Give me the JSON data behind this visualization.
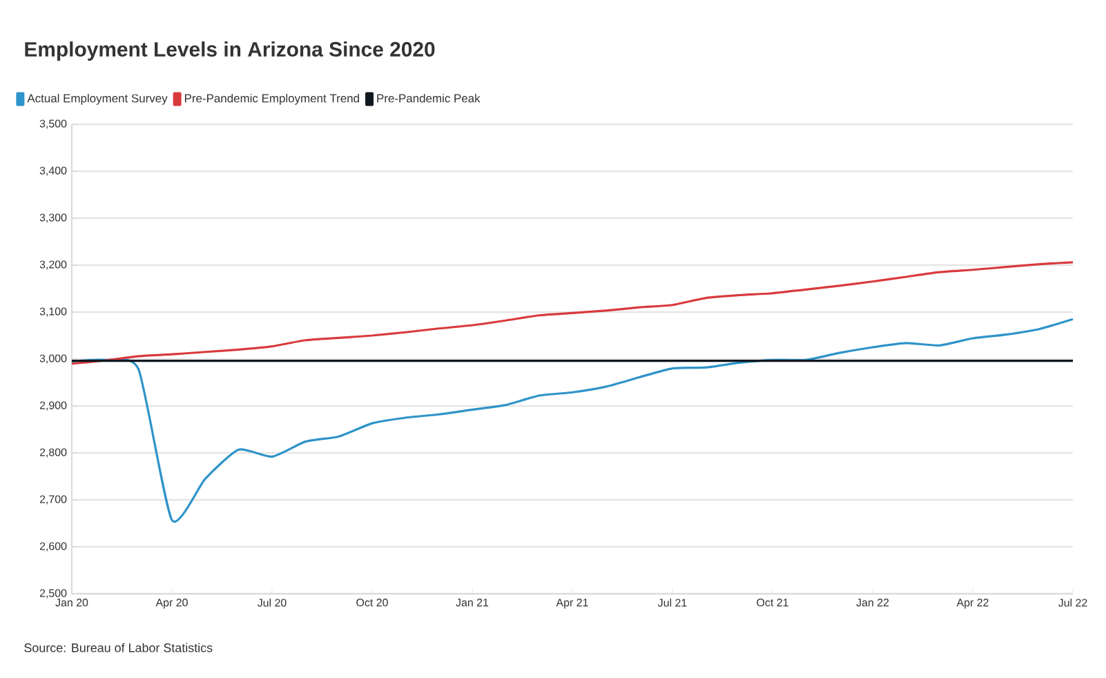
{
  "chart_data": {
    "type": "line",
    "title": "Employment Levels in Arizona Since 2020",
    "x": [
      "2020-01",
      "2020-02",
      "2020-03",
      "2020-04",
      "2020-05",
      "2020-06",
      "2020-07",
      "2020-08",
      "2020-09",
      "2020-10",
      "2020-11",
      "2020-12",
      "2021-01",
      "2021-02",
      "2021-03",
      "2021-04",
      "2021-05",
      "2021-06",
      "2021-07",
      "2021-08",
      "2021-09",
      "2021-10",
      "2021-11",
      "2021-12",
      "2022-01",
      "2022-02",
      "2022-03",
      "2022-04",
      "2022-05",
      "2022-06",
      "2022-07"
    ],
    "series": [
      {
        "name": "Actual Employment Survey",
        "color": "#2e93c9",
        "values": [
          2995,
          2998,
          2978,
          2657,
          2745,
          2807,
          2792,
          2824,
          2835,
          2863,
          2875,
          2882,
          2892,
          2902,
          2922,
          2929,
          2941,
          2961,
          2980,
          2982,
          2992,
          2998,
          2998,
          3013,
          3025,
          3034,
          3029,
          3044,
          3052,
          3064,
          3085
        ]
      },
      {
        "name": "Pre-Pandemic Employment Trend",
        "color": "#d93a3d",
        "values": [
          2990,
          2997,
          3006,
          3010,
          3015,
          3020,
          3027,
          3040,
          3045,
          3050,
          3057,
          3065,
          3072,
          3082,
          3093,
          3098,
          3103,
          3110,
          3115,
          3130,
          3136,
          3140,
          3148,
          3156,
          3165,
          3175,
          3185,
          3190,
          3196,
          3202,
          3206
        ]
      },
      {
        "name": "Pre-Pandemic Peak",
        "color": "#121820",
        "x": [
          "2020-01",
          "2022-07"
        ],
        "values": [
          2996,
          2996
        ]
      }
    ],
    "xlim": [
      "2020-01",
      "2022-07"
    ],
    "xticks": [
      {
        "value": "2020-01",
        "label": "Jan 20"
      },
      {
        "value": "2020-04",
        "label": "Apr 20"
      },
      {
        "value": "2020-07",
        "label": "Jul 20"
      },
      {
        "value": "2020-10",
        "label": "Oct 20"
      },
      {
        "value": "2021-01",
        "label": "Jan 21"
      },
      {
        "value": "2021-04",
        "label": "Apr 21"
      },
      {
        "value": "2021-07",
        "label": "Jul 21"
      },
      {
        "value": "2021-10",
        "label": "Oct 21"
      },
      {
        "value": "2022-01",
        "label": "Jan 22"
      },
      {
        "value": "2022-04",
        "label": "Apr 22"
      },
      {
        "value": "2022-07",
        "label": "Jul 22"
      }
    ],
    "ylim": [
      2500,
      3500
    ],
    "yticks": [
      {
        "value": 2500,
        "label": "2,500"
      },
      {
        "value": 2600,
        "label": "2,600"
      },
      {
        "value": 2700,
        "label": "2,700"
      },
      {
        "value": 2800,
        "label": "2,800"
      },
      {
        "value": 2900,
        "label": "2,900"
      },
      {
        "value": 3000,
        "label": "3,000"
      },
      {
        "value": 3100,
        "label": "3,100"
      },
      {
        "value": 3200,
        "label": "3,200"
      },
      {
        "value": 3300,
        "label": "3,300"
      },
      {
        "value": 3400,
        "label": "3,400"
      },
      {
        "value": 3500,
        "label": "3,500"
      }
    ],
    "grid": "y",
    "legend": "top left",
    "marker": "none",
    "line_style": "solid",
    "annotations": [
      "Source: Bureau of Labor Statistics"
    ]
  }
}
